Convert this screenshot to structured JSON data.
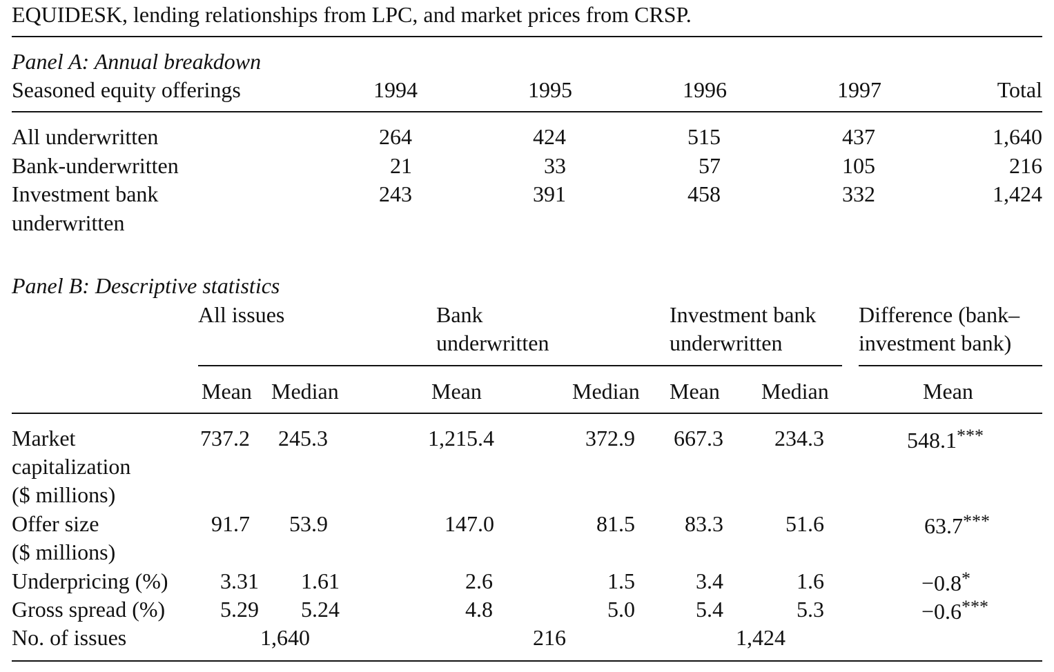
{
  "intro_line": "EQUIDESK, lending relationships from LPC, and market prices from CRSP.",
  "panel_a": {
    "title": "Panel A: Annual breakdown",
    "row_header": "Seasoned equity offerings",
    "columns": [
      "1994",
      "1995",
      "1996",
      "1997",
      "Total"
    ],
    "rows": [
      {
        "label": [
          "All underwritten"
        ],
        "values": [
          "264",
          "424",
          "515",
          "437",
          "1,640"
        ]
      },
      {
        "label": [
          "Bank-underwritten"
        ],
        "values": [
          "21",
          "33",
          "57",
          "105",
          "216"
        ]
      },
      {
        "label": [
          "Investment bank",
          "underwritten"
        ],
        "values": [
          "243",
          "391",
          "458",
          "332",
          "1,424"
        ]
      }
    ]
  },
  "panel_b": {
    "title": "Panel B: Descriptive statistics",
    "groups": [
      [
        "All issues"
      ],
      [
        "Bank",
        "underwritten"
      ],
      [
        "Investment bank",
        "underwritten"
      ],
      [
        "Difference (bank–",
        "investment bank)"
      ]
    ],
    "subheaders": [
      "Mean",
      "Median",
      "Mean",
      "Median",
      "Mean",
      "Median",
      "Mean"
    ],
    "rows": [
      {
        "label": [
          "Market",
          "capitalization",
          "($ millions)"
        ],
        "values": [
          "737.2",
          "245.3",
          "1,215.4",
          "372.9",
          "667.3",
          "234.3",
          "548.1"
        ],
        "stars": "***"
      },
      {
        "label": [
          "Offer size",
          "($ millions)"
        ],
        "values": [
          "91.7",
          "53.9",
          "147.0",
          "81.5",
          "83.3",
          "51.6",
          "63.7"
        ],
        "stars": "***"
      },
      {
        "label": [
          "Underpricing (%)"
        ],
        "values": [
          "3.31",
          "1.61",
          "2.6",
          "1.5",
          "3.4",
          "1.6",
          "−0.8"
        ],
        "stars": "*"
      },
      {
        "label": [
          "Gross spread (%)"
        ],
        "values": [
          "5.29",
          "5.24",
          "4.8",
          "5.0",
          "5.4",
          "5.3",
          "−0.6"
        ],
        "stars": "***"
      }
    ],
    "issues_row": {
      "label": "No. of issues",
      "values": [
        "1,640",
        "216",
        "1,424"
      ]
    }
  }
}
